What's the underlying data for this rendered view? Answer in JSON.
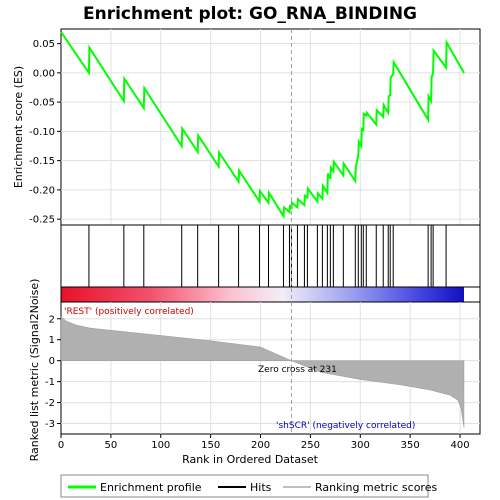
{
  "chart_data": {
    "type": "line",
    "title": "Enrichment plot: GO_RNA_BINDING",
    "xlabel": "Rank in Ordered Dataset",
    "ylabel_top": "Enrichment score (ES)",
    "ylabel_bottom": "Ranked list metric (Signal2Noise)",
    "xlim": [
      0,
      420
    ],
    "x_ticks": [
      0,
      50,
      100,
      150,
      200,
      250,
      300,
      350,
      400
    ],
    "es_ylim": [
      -0.26,
      0.075
    ],
    "es_ticks": [
      0.05,
      0.0,
      -0.05,
      -0.1,
      -0.15,
      -0.2,
      -0.25
    ],
    "es_tick_labels": [
      "0.05",
      "0.00",
      "-0.05",
      "-0.10",
      "-0.15",
      "-0.20",
      "-0.25"
    ],
    "metric_ylim": [
      -3.5,
      2.8
    ],
    "metric_ticks": [
      2,
      1,
      0,
      -1,
      -2,
      -3
    ],
    "hits": [
      28,
      63,
      83,
      121,
      137,
      158,
      178,
      199,
      208,
      223,
      229,
      231,
      237,
      244,
      247,
      257,
      262,
      267,
      270,
      273,
      283,
      295,
      298,
      301,
      303,
      306,
      316,
      323,
      328,
      330,
      333,
      368,
      371,
      373,
      386
    ],
    "es_profile": {
      "x": [
        0,
        28,
        28.5,
        63,
        63.5,
        83,
        83.5,
        121,
        121.5,
        137,
        137.5,
        158,
        158.5,
        178,
        178.5,
        199,
        199.5,
        208,
        208.5,
        223,
        223.5,
        229,
        229.5,
        231,
        231.5,
        237,
        237.5,
        244,
        244.5,
        247,
        247.5,
        257,
        257.5,
        262,
        262.5,
        267,
        267.5,
        270,
        270.5,
        273,
        273.5,
        283,
        283.5,
        295,
        295.5,
        298,
        298.5,
        301,
        301.5,
        303,
        303.5,
        306,
        306.5,
        316,
        316.5,
        323,
        323.5,
        328,
        328.5,
        330,
        330.5,
        333,
        333.5,
        368,
        368.5,
        371,
        371.5,
        373,
        373.5,
        386,
        386.5,
        404
      ],
      "y": [
        0.07,
        0.0,
        0.043,
        -0.048,
        -0.01,
        -0.06,
        -0.026,
        -0.125,
        -0.095,
        -0.135,
        -0.107,
        -0.16,
        -0.136,
        -0.186,
        -0.167,
        -0.22,
        -0.202,
        -0.222,
        -0.205,
        -0.245,
        -0.23,
        -0.238,
        -0.226,
        -0.233,
        -0.222,
        -0.23,
        -0.216,
        -0.226,
        -0.21,
        -0.213,
        -0.198,
        -0.22,
        -0.206,
        -0.215,
        -0.193,
        -0.205,
        -0.172,
        -0.181,
        -0.162,
        -0.168,
        -0.152,
        -0.175,
        -0.155,
        -0.185,
        -0.16,
        -0.142,
        -0.118,
        -0.125,
        -0.096,
        -0.098,
        -0.07,
        -0.073,
        -0.068,
        -0.088,
        -0.064,
        -0.075,
        -0.055,
        -0.068,
        -0.04,
        -0.038,
        -0.008,
        -0.002,
        0.018,
        -0.08,
        -0.04,
        -0.048,
        -0.007,
        0.0,
        0.038,
        0.009,
        0.052,
        0.0
      ]
    },
    "metric_profile": {
      "x": [
        0,
        5,
        15,
        30,
        60,
        100,
        150,
        200,
        231,
        260,
        300,
        340,
        370,
        390,
        398,
        401,
        403,
        404
      ],
      "y": [
        2.1,
        1.9,
        1.7,
        1.55,
        1.4,
        1.2,
        0.95,
        0.65,
        0.0,
        -0.55,
        -0.9,
        -1.15,
        -1.4,
        -1.65,
        -1.9,
        -2.3,
        -2.9,
        -3.2
      ]
    },
    "zero_cross_rank": 231,
    "annotations": {
      "positive": "'REST' (positively correlated)",
      "zero_cross": "Zero cross at 231",
      "negative": "'shSCR' (negatively correlated)"
    },
    "legend": {
      "enrichment": "Enrichment profile",
      "hits": "Hits",
      "ranking": "Ranking metric scores"
    },
    "colors": {
      "es_line": "#00ff00",
      "hit_line": "#000000",
      "metric_fill": "#b0b0b0",
      "positive_text": "#cc0000",
      "negative_text": "#0000cc",
      "zero_line": "#a0a0a0"
    }
  }
}
